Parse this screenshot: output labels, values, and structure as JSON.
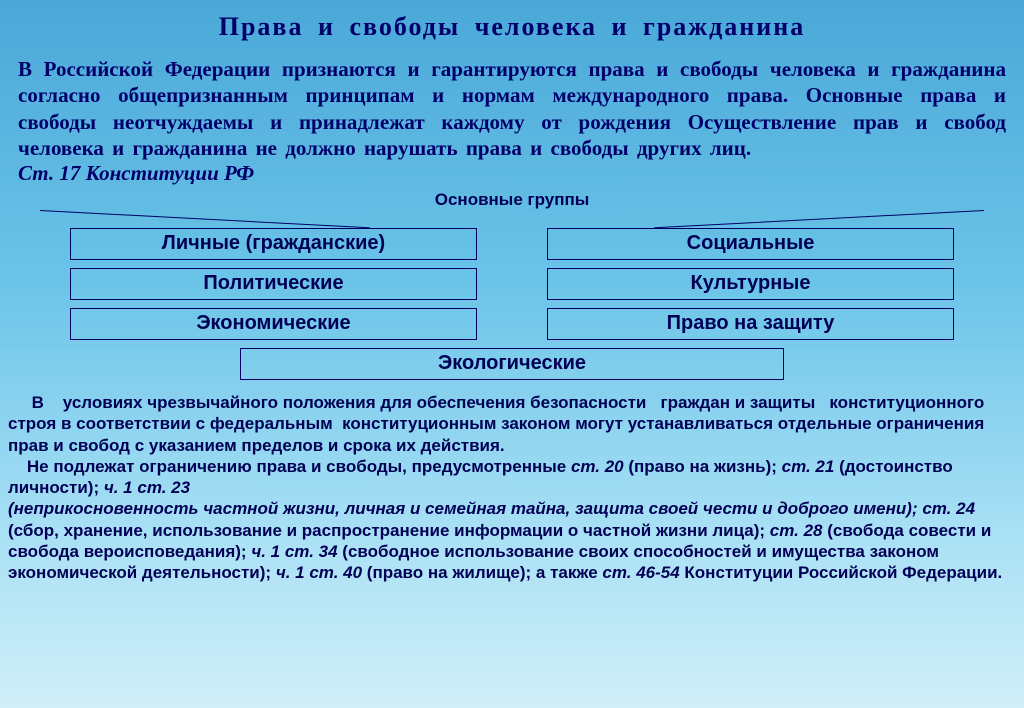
{
  "title": "Права  и  свободы  человека  и  гражданина",
  "intro": "В  Российской  Федерации  признаются  и гарантируются   права  и свободы человека  и  гражданина  согласно   общепризнанным принципам  и нормам международного права. Основные права и свободы неотчуждаемы и принадлежат каждому от рождения Осуществление прав и свобод человека и гражданина не должно нарушать права и свободы других лиц.",
  "cite": "Ст. 17 Конституции РФ",
  "subhead": "Основные группы",
  "boxes": {
    "r1c1": "Личные (гражданские)",
    "r1c2": "Социальные",
    "r2c1": "Политические",
    "r2c2": "Культурные",
    "r3c1": "Экономические",
    "r3c2": "Право на защиту",
    "wide": "Экологические"
  },
  "footer": {
    "p1a": "     В    условиях чрезвычайного положения для обеспечения безопасности   граждан и защиты   конституционного строя в соответствии с федеральным  конституционным законом могут устанавливаться отдельные ограничения прав и свобод с указанием пределов и срока их действия.",
    "p2_lead": "    Не подлежат ограничению права и свободы, предусмотренные ",
    "s20": "ст. 20",
    "s20_t": " (право на жизнь); ",
    "s21": "ст. 21",
    "s21_t": " (достоинство личности); ",
    "s23": "ч. 1 ст. 23",
    "p3_lead": "(неприкосновенность частной жизни, личная и семейная тайна, защита своей чести и доброго имени); ",
    "s24": "ст. 24",
    "s24_t": " (сбор, хранение, использование и распространение информации о частной жизни лица); ",
    "s28": "ст. 28",
    "s28_t": " (свобода совести и свобода вероисповедания); ",
    "s34": "ч. 1 ст. 34",
    "s34_t": " (свободное использование своих способностей и имущества законом экономической деятельности); ",
    "s40": "ч. 1 ст. 40",
    "s40_t": " (право на жилище); а также ",
    "s46": "ст. 46-54",
    "end": " Конституции Российской Федерации."
  },
  "colors": {
    "text": "#00006a",
    "border": "#000060",
    "bg_top": "#4aa8d8",
    "bg_bottom": "#d0eff8"
  },
  "fonts": {
    "title_size": 26,
    "intro_size": 21,
    "box_size": 20,
    "footer_size": 17
  }
}
